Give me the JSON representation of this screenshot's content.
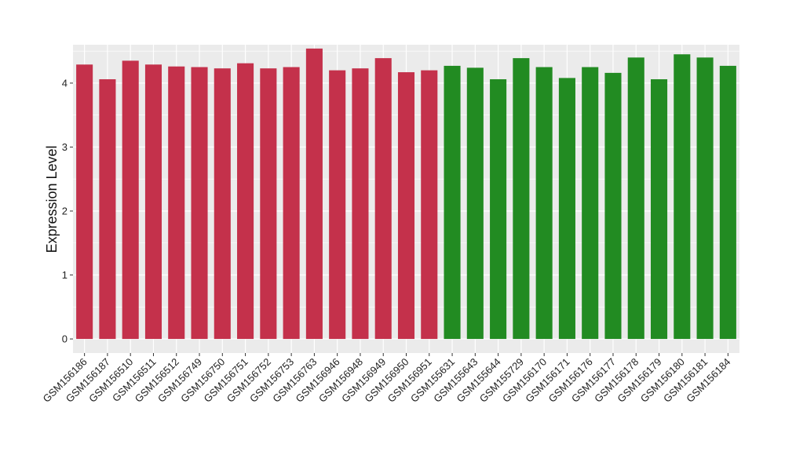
{
  "chart_data": {
    "type": "bar",
    "ylabel": "Expression Level",
    "xlabel": "",
    "ylim": [
      -0.22,
      4.6
    ],
    "yticks": [
      0,
      1,
      2,
      3,
      4
    ],
    "grid": true,
    "legend": "none",
    "colors": {
      "panel": "#ebebeb",
      "grid": "#ffffff",
      "group1": "#c4314b",
      "group2": "#228b22"
    },
    "categories": [
      "GSM156186",
      "GSM156187",
      "GSM156510",
      "GSM156511",
      "GSM156512",
      "GSM156749",
      "GSM156750",
      "GSM156751",
      "GSM156752",
      "GSM156753",
      "GSM156763",
      "GSM156946",
      "GSM156948",
      "GSM156949",
      "GSM156950",
      "GSM156951",
      "GSM155631",
      "GSM155643",
      "GSM155644",
      "GSM155729",
      "GSM156170",
      "GSM156171",
      "GSM156176",
      "GSM156177",
      "GSM156178",
      "GSM156179",
      "GSM156180",
      "GSM156181",
      "GSM156184"
    ],
    "values": [
      4.29,
      4.06,
      4.35,
      4.29,
      4.26,
      4.25,
      4.23,
      4.31,
      4.23,
      4.25,
      4.54,
      4.2,
      4.23,
      4.39,
      4.17,
      4.2,
      4.27,
      4.24,
      4.06,
      4.39,
      4.25,
      4.08,
      4.25,
      4.16,
      4.4,
      4.06,
      4.45,
      4.4,
      4.27
    ],
    "groups": [
      1,
      1,
      1,
      1,
      1,
      1,
      1,
      1,
      1,
      1,
      1,
      1,
      1,
      1,
      1,
      1,
      2,
      2,
      2,
      2,
      2,
      2,
      2,
      2,
      2,
      2,
      2,
      2,
      2
    ]
  }
}
